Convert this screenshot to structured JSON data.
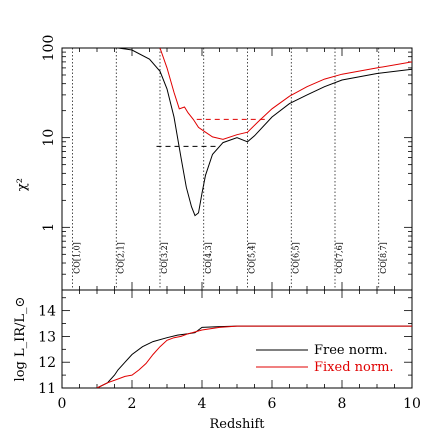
{
  "chart_data": [
    {
      "type": "line",
      "panel": "top",
      "ylabel": "χ²",
      "yscale": "log",
      "xlim": [
        0,
        10
      ],
      "ylim": [
        0.2,
        100
      ],
      "yticks": [
        {
          "value": 100,
          "label": "100"
        },
        {
          "value": 10,
          "label": "10"
        },
        {
          "value": 1,
          "label": "1"
        }
      ],
      "reference_lines": [
        {
          "x": 0.3,
          "label": "CO[1,0]"
        },
        {
          "x": 1.55,
          "label": "CO[2,1]"
        },
        {
          "x": 2.8,
          "label": "CO[3,2]"
        },
        {
          "x": 4.05,
          "label": "CO[4,3]"
        },
        {
          "x": 5.3,
          "label": "CO[5,4]"
        },
        {
          "x": 6.55,
          "label": "CO[6,5]"
        },
        {
          "x": 7.8,
          "label": "CO[7,6]"
        },
        {
          "x": 9.05,
          "label": "CO[8,7]"
        }
      ],
      "series": [
        {
          "name": "Free norm.",
          "color": "#000000",
          "x": [
            1.6,
            2.0,
            2.5,
            2.8,
            3.0,
            3.2,
            3.4,
            3.55,
            3.7,
            3.8,
            3.9,
            4.0,
            4.1,
            4.3,
            4.6,
            5.0,
            5.3,
            5.5,
            6.0,
            6.5,
            7.0,
            7.5,
            8.0,
            9.0,
            10.0
          ],
          "y": [
            100,
            95,
            75,
            55,
            35,
            17,
            6.0,
            2.8,
            1.7,
            1.35,
            1.45,
            2.4,
            3.8,
            6.5,
            8.8,
            10.0,
            9.0,
            10.5,
            17,
            24,
            30,
            37,
            44,
            52,
            58
          ]
        },
        {
          "name": "Fixed norm.",
          "color": "#e00000",
          "x": [
            2.8,
            3.0,
            3.2,
            3.35,
            3.5,
            3.6,
            3.75,
            3.9,
            4.1,
            4.3,
            4.6,
            5.0,
            5.3,
            5.6,
            6.0,
            6.5,
            7.0,
            7.5,
            8.0,
            9.0,
            10.0
          ],
          "y": [
            100,
            60,
            32,
            21,
            22,
            19,
            16,
            13,
            11.5,
            10.2,
            9.6,
            10.8,
            11.5,
            15,
            21,
            29,
            37,
            45,
            51,
            60,
            70
          ]
        }
      ],
      "dashed_levels": [
        {
          "color": "#000000",
          "x": [
            2.7,
            4.5
          ],
          "y": 8.0
        },
        {
          "color": "#e00000",
          "x": [
            3.85,
            5.8
          ],
          "y": 16
        }
      ]
    },
    {
      "type": "line",
      "panel": "bottom",
      "xlabel": "Redshift",
      "ylabel": "log L_IR/L_⊙",
      "xlim": [
        0,
        10
      ],
      "ylim": [
        11,
        14.8
      ],
      "xticks": [
        0,
        2,
        4,
        6,
        8,
        10
      ],
      "yticks": [
        11,
        12,
        13,
        14
      ],
      "legend": "bottom-right",
      "series": [
        {
          "name": "Free norm.",
          "color": "#000000",
          "x": [
            1.0,
            1.3,
            1.5,
            1.6,
            1.8,
            2.0,
            2.3,
            2.6,
            3.0,
            3.3,
            3.6,
            3.8,
            4.0,
            4.5,
            5.0,
            6.0,
            7.0,
            8.0,
            9.0,
            10.0
          ],
          "y": [
            11.0,
            11.2,
            11.5,
            11.7,
            12.0,
            12.3,
            12.6,
            12.8,
            12.95,
            13.05,
            13.1,
            13.15,
            13.35,
            13.38,
            13.4,
            13.4,
            13.4,
            13.4,
            13.4,
            13.4
          ]
        },
        {
          "name": "Fixed norm.",
          "color": "#e00000",
          "x": [
            1.0,
            1.3,
            1.6,
            1.8,
            2.0,
            2.2,
            2.4,
            2.6,
            2.8,
            3.0,
            3.2,
            3.4,
            3.6,
            4.0,
            4.5,
            5.0,
            6.0,
            7.0,
            8.0,
            9.0,
            10.0
          ],
          "y": [
            11.0,
            11.2,
            11.35,
            11.45,
            11.5,
            11.7,
            11.95,
            12.3,
            12.6,
            12.85,
            12.95,
            13.0,
            13.1,
            13.25,
            13.35,
            13.4,
            13.4,
            13.4,
            13.4,
            13.4,
            13.4
          ]
        }
      ],
      "legend_entries": [
        {
          "name": "Free norm.",
          "color": "#000000"
        },
        {
          "name": "Fixed norm.",
          "color": "#e00000"
        }
      ]
    }
  ]
}
